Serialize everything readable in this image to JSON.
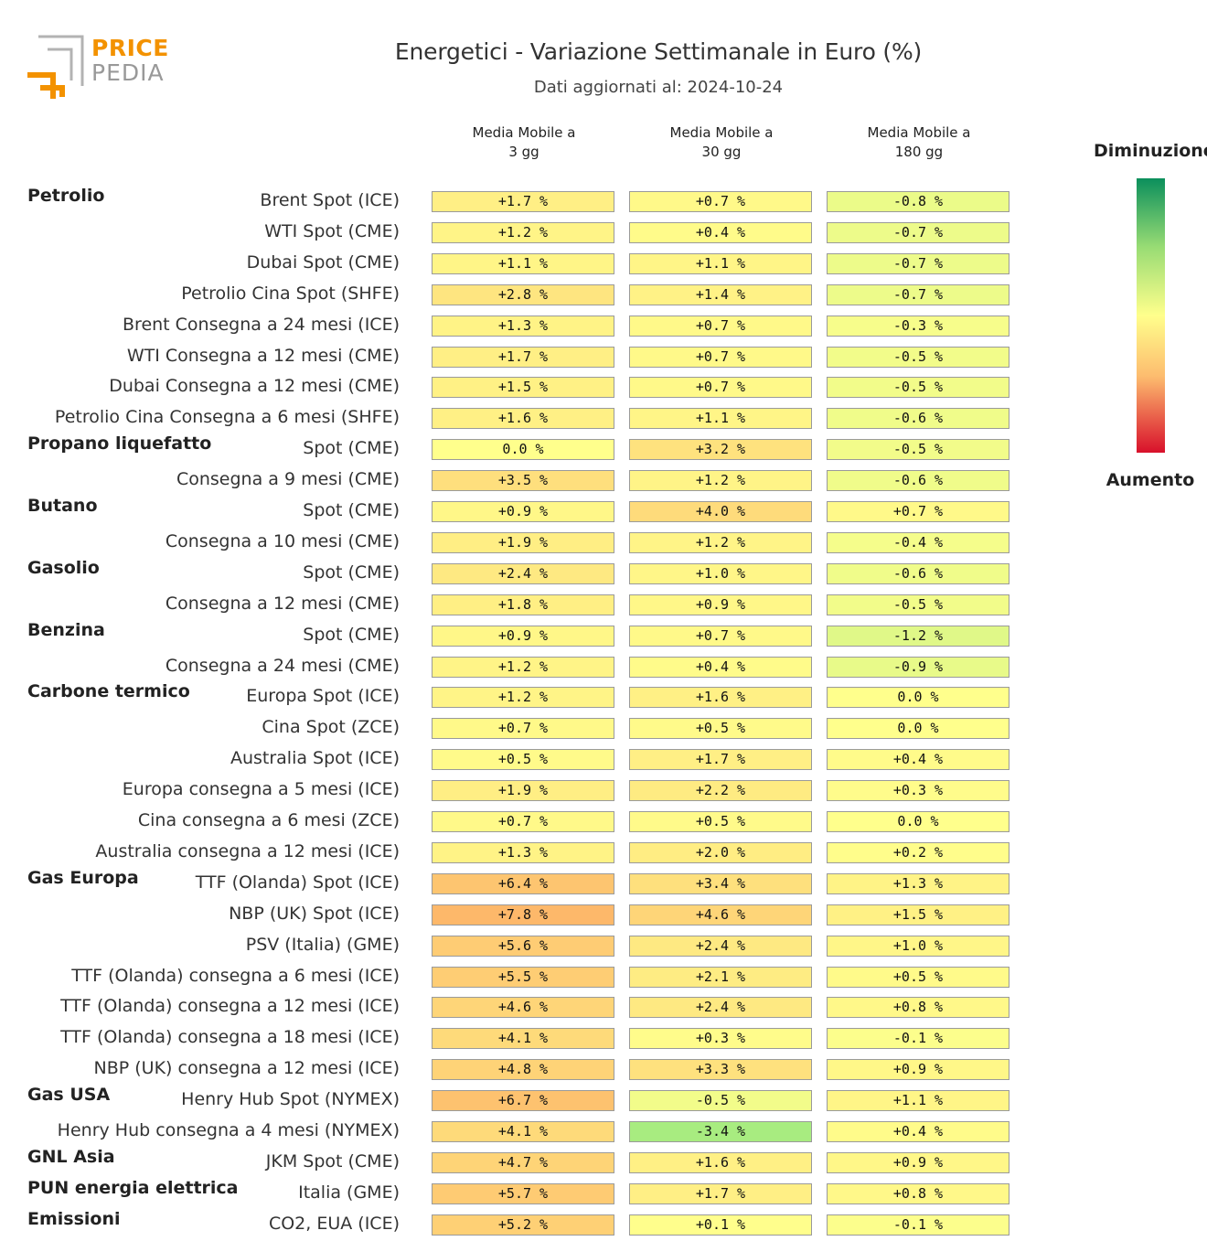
{
  "logo": {
    "line1": "PRICE",
    "line2": "PEDIA"
  },
  "chart_data": {
    "type": "table",
    "title": "Energetici - Variazione Settimanale in Euro (%)",
    "subtitle": "Dati aggiornati al: 2024-10-24",
    "columns": [
      "Media Mobile a\n3 gg",
      "Media Mobile a\n30 gg",
      "Media Mobile a\n180 gg"
    ],
    "unit": "%",
    "legend": {
      "top": "Diminuzione",
      "bottom": "Aumento"
    },
    "rows": [
      {
        "group": "Petrolio",
        "label": "Brent Spot (ICE)",
        "values": [
          1.7,
          0.7,
          -0.8
        ]
      },
      {
        "group": "",
        "label": "WTI Spot (CME)",
        "values": [
          1.2,
          0.4,
          -0.7
        ]
      },
      {
        "group": "",
        "label": "Dubai Spot (CME)",
        "values": [
          1.1,
          1.1,
          -0.7
        ]
      },
      {
        "group": "",
        "label": "Petrolio Cina Spot (SHFE)",
        "values": [
          2.8,
          1.4,
          -0.7
        ]
      },
      {
        "group": "",
        "label": "Brent Consegna a 24 mesi (ICE)",
        "values": [
          1.3,
          0.7,
          -0.3
        ]
      },
      {
        "group": "",
        "label": "WTI Consegna a 12 mesi (CME)",
        "values": [
          1.7,
          0.7,
          -0.5
        ]
      },
      {
        "group": "",
        "label": "Dubai Consegna a 12 mesi (CME)",
        "values": [
          1.5,
          0.7,
          -0.5
        ]
      },
      {
        "group": "",
        "label": "Petrolio Cina Consegna a 6 mesi (SHFE)",
        "values": [
          1.6,
          1.1,
          -0.6
        ]
      },
      {
        "group": "Propano liquefatto",
        "label": "Spot (CME)",
        "values": [
          0.0,
          3.2,
          -0.5
        ]
      },
      {
        "group": "",
        "label": "Consegna a 9 mesi (CME)",
        "values": [
          3.5,
          1.2,
          -0.6
        ]
      },
      {
        "group": "Butano",
        "label": "Spot (CME)",
        "values": [
          0.9,
          4.0,
          0.7
        ]
      },
      {
        "group": "",
        "label": "Consegna a 10 mesi (CME)",
        "values": [
          1.9,
          1.2,
          -0.4
        ]
      },
      {
        "group": "Gasolio",
        "label": "Spot (CME)",
        "values": [
          2.4,
          1.0,
          -0.6
        ]
      },
      {
        "group": "",
        "label": "Consegna a 12 mesi (CME)",
        "values": [
          1.8,
          0.9,
          -0.5
        ]
      },
      {
        "group": "Benzina",
        "label": "Spot (CME)",
        "values": [
          0.9,
          0.7,
          -1.2
        ]
      },
      {
        "group": "",
        "label": "Consegna a 24 mesi (CME)",
        "values": [
          1.2,
          0.4,
          -0.9
        ]
      },
      {
        "group": "Carbone termico",
        "label": "Europa Spot (ICE)",
        "values": [
          1.2,
          1.6,
          0.0
        ]
      },
      {
        "group": "",
        "label": "Cina Spot (ZCE)",
        "values": [
          0.7,
          0.5,
          0.0
        ]
      },
      {
        "group": "",
        "label": "Australia Spot (ICE)",
        "values": [
          0.5,
          1.7,
          0.4
        ]
      },
      {
        "group": "",
        "label": "Europa consegna a 5 mesi (ICE)",
        "values": [
          1.9,
          2.2,
          0.3
        ]
      },
      {
        "group": "",
        "label": "Cina consegna a 6 mesi (ZCE)",
        "values": [
          0.7,
          0.5,
          0.0
        ]
      },
      {
        "group": "",
        "label": "Australia consegna a 12 mesi (ICE)",
        "values": [
          1.3,
          2.0,
          0.2
        ]
      },
      {
        "group": "Gas Europa",
        "label": "TTF (Olanda) Spot (ICE)",
        "values": [
          6.4,
          3.4,
          1.3
        ]
      },
      {
        "group": "",
        "label": "NBP (UK) Spot (ICE)",
        "values": [
          7.8,
          4.6,
          1.5
        ]
      },
      {
        "group": "",
        "label": "PSV (Italia) (GME)",
        "values": [
          5.6,
          2.4,
          1.0
        ]
      },
      {
        "group": "",
        "label": "TTF (Olanda) consegna a 6 mesi (ICE)",
        "values": [
          5.5,
          2.1,
          0.5
        ]
      },
      {
        "group": "",
        "label": "TTF (Olanda) consegna a 12 mesi (ICE)",
        "values": [
          4.6,
          2.4,
          0.8
        ]
      },
      {
        "group": "",
        "label": "TTF (Olanda) consegna a 18 mesi (ICE)",
        "values": [
          4.1,
          0.3,
          -0.1
        ]
      },
      {
        "group": "",
        "label": "NBP (UK) consegna a 12 mesi (ICE)",
        "values": [
          4.8,
          3.3,
          0.9
        ]
      },
      {
        "group": "Gas USA",
        "label": "Henry Hub Spot (NYMEX)",
        "values": [
          6.7,
          -0.5,
          1.1
        ]
      },
      {
        "group": "",
        "label": "Henry Hub consegna a 4 mesi (NYMEX)",
        "values": [
          4.1,
          -3.4,
          0.4
        ]
      },
      {
        "group": "GNL Asia",
        "label": "JKM Spot (CME)",
        "values": [
          4.7,
          1.6,
          0.9
        ]
      },
      {
        "group": "PUN energia elettrica",
        "label": "Italia (GME)",
        "values": [
          5.7,
          1.7,
          0.8
        ]
      },
      {
        "group": "Emissioni",
        "label": "CO2, EUA (ICE)",
        "values": [
          5.2,
          0.1,
          -0.1
        ]
      }
    ]
  }
}
